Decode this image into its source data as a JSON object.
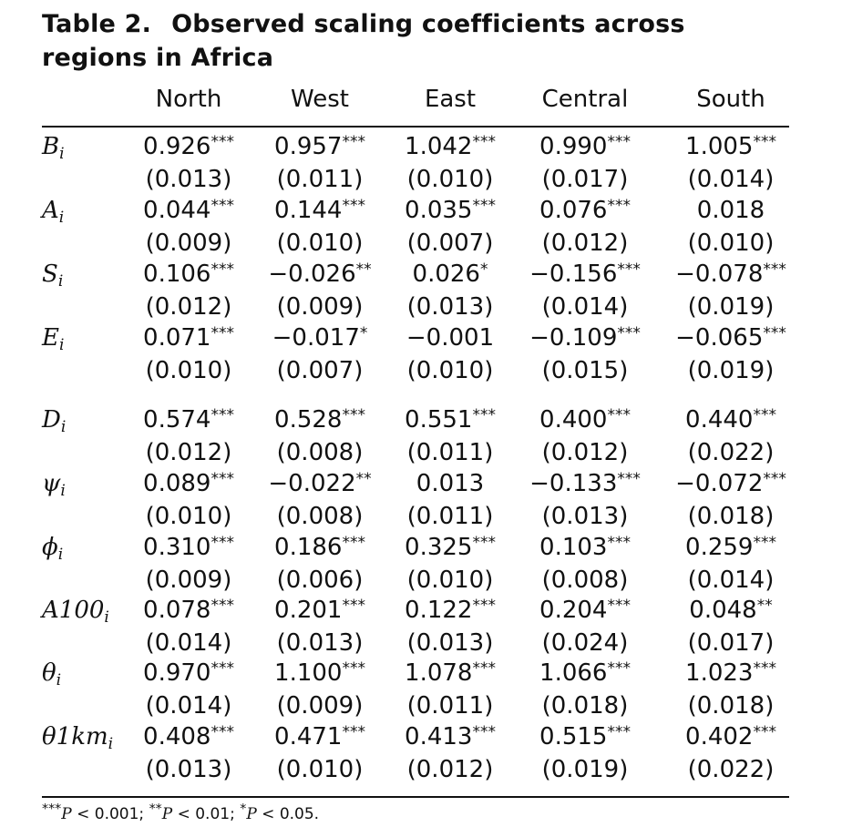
{
  "caption": {
    "number": "Table 2.",
    "title": "Observed scaling coefficients across regions in Africa"
  },
  "columns": [
    "North",
    "West",
    "East",
    "Central",
    "South"
  ],
  "rows": [
    {
      "var": "B",
      "sub": "i",
      "coef": [
        "0.926",
        "0.957",
        "1.042",
        "0.990",
        "1.005"
      ],
      "sig": [
        "***",
        "***",
        "***",
        "***",
        "***"
      ],
      "se": [
        "(0.013)",
        "(0.011)",
        "(0.010)",
        "(0.017)",
        "(0.014)"
      ]
    },
    {
      "var": "A",
      "sub": "i",
      "coef": [
        "0.044",
        "0.144",
        "0.035",
        "0.076",
        "0.018"
      ],
      "sig": [
        "***",
        "***",
        "***",
        "***",
        ""
      ],
      "se": [
        "(0.009)",
        "(0.010)",
        "(0.007)",
        "(0.012)",
        "(0.010)"
      ]
    },
    {
      "var": "S",
      "sub": "i",
      "coef": [
        "0.106",
        "−0.026",
        "0.026",
        "−0.156",
        "−0.078"
      ],
      "sig": [
        "***",
        "**",
        "*",
        "***",
        "***"
      ],
      "se": [
        "(0.012)",
        "(0.009)",
        "(0.013)",
        "(0.014)",
        "(0.019)"
      ]
    },
    {
      "var": "E",
      "sub": "i",
      "coef": [
        "0.071",
        "−0.017",
        "−0.001",
        "−0.109",
        "−0.065"
      ],
      "sig": [
        "***",
        "*",
        "",
        "***",
        "***"
      ],
      "se": [
        "(0.010)",
        "(0.007)",
        "(0.010)",
        "(0.015)",
        "(0.019)"
      ]
    },
    {
      "var": "D",
      "sub": "i",
      "coef": [
        "0.574",
        "0.528",
        "0.551",
        "0.400",
        "0.440"
      ],
      "sig": [
        "***",
        "***",
        "***",
        "***",
        "***"
      ],
      "se": [
        "(0.012)",
        "(0.008)",
        "(0.011)",
        "(0.012)",
        "(0.022)"
      ]
    },
    {
      "var": "ψ",
      "sub": "i",
      "coef": [
        "0.089",
        "−0.022",
        "0.013",
        "−0.133",
        "−0.072"
      ],
      "sig": [
        "***",
        "**",
        "",
        "***",
        "***"
      ],
      "se": [
        "(0.010)",
        "(0.008)",
        "(0.011)",
        "(0.013)",
        "(0.018)"
      ]
    },
    {
      "var": "ϕ",
      "sub": "i",
      "coef": [
        "0.310",
        "0.186",
        "0.325",
        "0.103",
        "0.259"
      ],
      "sig": [
        "***",
        "***",
        "***",
        "***",
        "***"
      ],
      "se": [
        "(0.009)",
        "(0.006)",
        "(0.010)",
        "(0.008)",
        "(0.014)"
      ]
    },
    {
      "var": "A100",
      "sub": "i",
      "coef": [
        "0.078",
        "0.201",
        "0.122",
        "0.204",
        "0.048"
      ],
      "sig": [
        "***",
        "***",
        "***",
        "***",
        "**"
      ],
      "se": [
        "(0.014)",
        "(0.013)",
        "(0.013)",
        "(0.024)",
        "(0.017)"
      ]
    },
    {
      "var": "θ",
      "sub": "i",
      "coef": [
        "0.970",
        "1.100",
        "1.078",
        "1.066",
        "1.023"
      ],
      "sig": [
        "***",
        "***",
        "***",
        "***",
        "***"
      ],
      "se": [
        "(0.014)",
        "(0.009)",
        "(0.011)",
        "(0.018)",
        "(0.018)"
      ]
    },
    {
      "var": "θ1km",
      "sub": "i",
      "coef": [
        "0.408",
        "0.471",
        "0.413",
        "0.515",
        "0.402"
      ],
      "sig": [
        "***",
        "***",
        "***",
        "***",
        "***"
      ],
      "se": [
        "(0.013)",
        "(0.010)",
        "(0.012)",
        "(0.019)",
        "(0.022)"
      ]
    }
  ],
  "footnote": [
    {
      "stars": "***",
      "p": "P",
      "rel": "<",
      "val": "0.001;"
    },
    {
      "stars": "**",
      "p": "P",
      "rel": "<",
      "val": "0.01;"
    },
    {
      "stars": "*",
      "p": "P",
      "rel": "<",
      "val": "0.05."
    }
  ]
}
